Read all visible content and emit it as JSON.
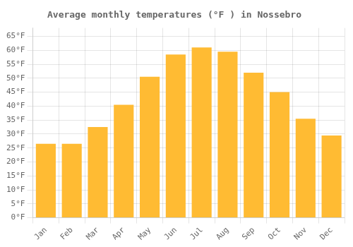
{
  "chart_data": {
    "type": "bar",
    "title": "Average monthly temperatures (°F ) in Nossebro",
    "categories": [
      "Jan",
      "Feb",
      "Mar",
      "Apr",
      "May",
      "Jun",
      "Jul",
      "Aug",
      "Sep",
      "Oct",
      "Nov",
      "Dec"
    ],
    "values": [
      26.5,
      26.5,
      32.5,
      40.5,
      50.5,
      58.5,
      61.0,
      59.5,
      52.0,
      45.0,
      35.5,
      29.5
    ],
    "color": "#FFBB33",
    "ylim": [
      0,
      68
    ],
    "yticks": [
      {
        "value": 0,
        "label": "0°F"
      },
      {
        "value": 5,
        "label": "5°F"
      },
      {
        "value": 10,
        "label": "10°F"
      },
      {
        "value": 15,
        "label": "15°F"
      },
      {
        "value": 20,
        "label": "20°F"
      },
      {
        "value": 25,
        "label": "25°F"
      },
      {
        "value": 30,
        "label": "30°F"
      },
      {
        "value": 35,
        "label": "35°F"
      },
      {
        "value": 40,
        "label": "40°F"
      },
      {
        "value": 45,
        "label": "45°F"
      },
      {
        "value": 50,
        "label": "50°F"
      },
      {
        "value": 55,
        "label": "55°F"
      },
      {
        "value": 60,
        "label": "60°F"
      },
      {
        "value": 65,
        "label": "65°F"
      }
    ],
    "grid": true
  }
}
